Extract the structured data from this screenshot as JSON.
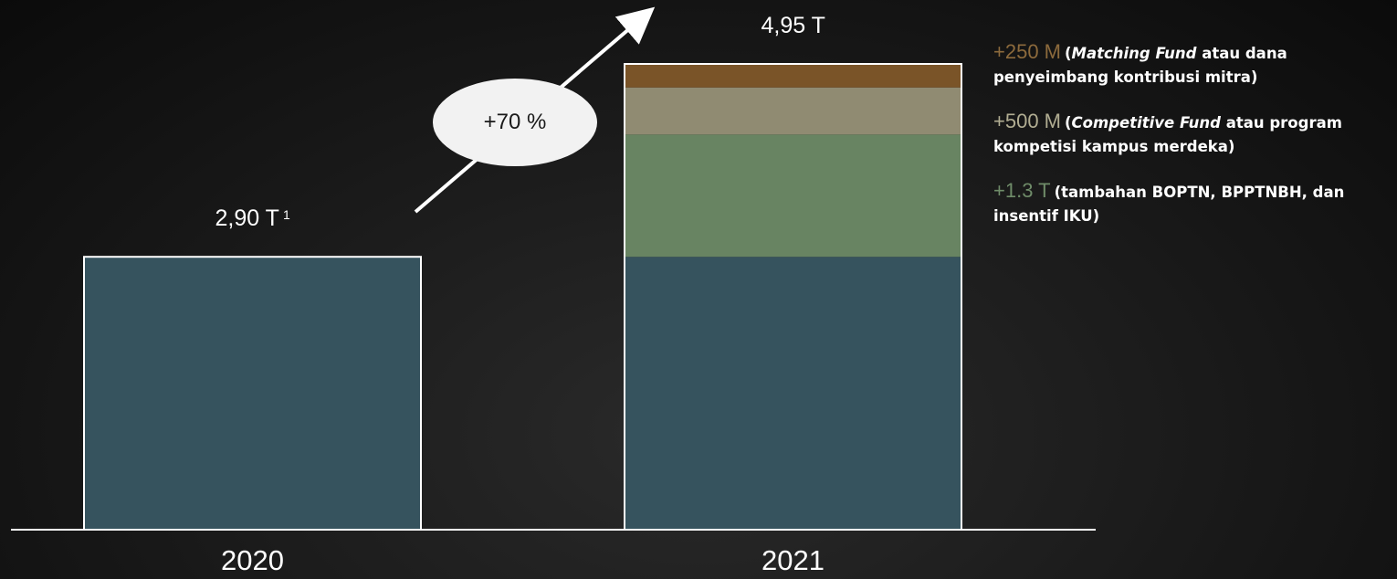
{
  "chart_data": {
    "type": "bar",
    "stacked": true,
    "categories": [
      "2020",
      "2021"
    ],
    "unit": "T",
    "ylim": [
      0,
      5.1
    ],
    "grid": false,
    "series": [
      {
        "values": [
          2.9,
          2.9
        ],
        "color": "#36535e"
      },
      {
        "values": [
          0,
          1.3
        ],
        "color": "#688462"
      },
      {
        "values": [
          0,
          0.5
        ],
        "color": "#908b72"
      },
      {
        "values": [
          0,
          0.25
        ],
        "color": "#7a5428"
      }
    ],
    "totals": [
      {
        "text": "2,90 T",
        "footnote": "1"
      },
      {
        "text": "4,95 T",
        "footnote": ""
      }
    ],
    "growth_annotation": "+70 %"
  },
  "legend": {
    "items": [
      {
        "amount": "+250 M",
        "color": "#8c6a3c",
        "open": "(",
        "emph": "Matching Fund",
        "rest": " atau dana penyeimbang kontribusi mitra)"
      },
      {
        "amount": "+500 M",
        "color": "#b1ad92",
        "open": "(",
        "emph": "Competitive Fund",
        "rest": " atau program kompetisi kampus merdeka)"
      },
      {
        "amount": "+1.3 T",
        "color": "#6f8c69",
        "open": "",
        "emph": "",
        "rest": "(tambahan BOPTN, BPPTNBH, dan insentif IKU)"
      }
    ]
  }
}
